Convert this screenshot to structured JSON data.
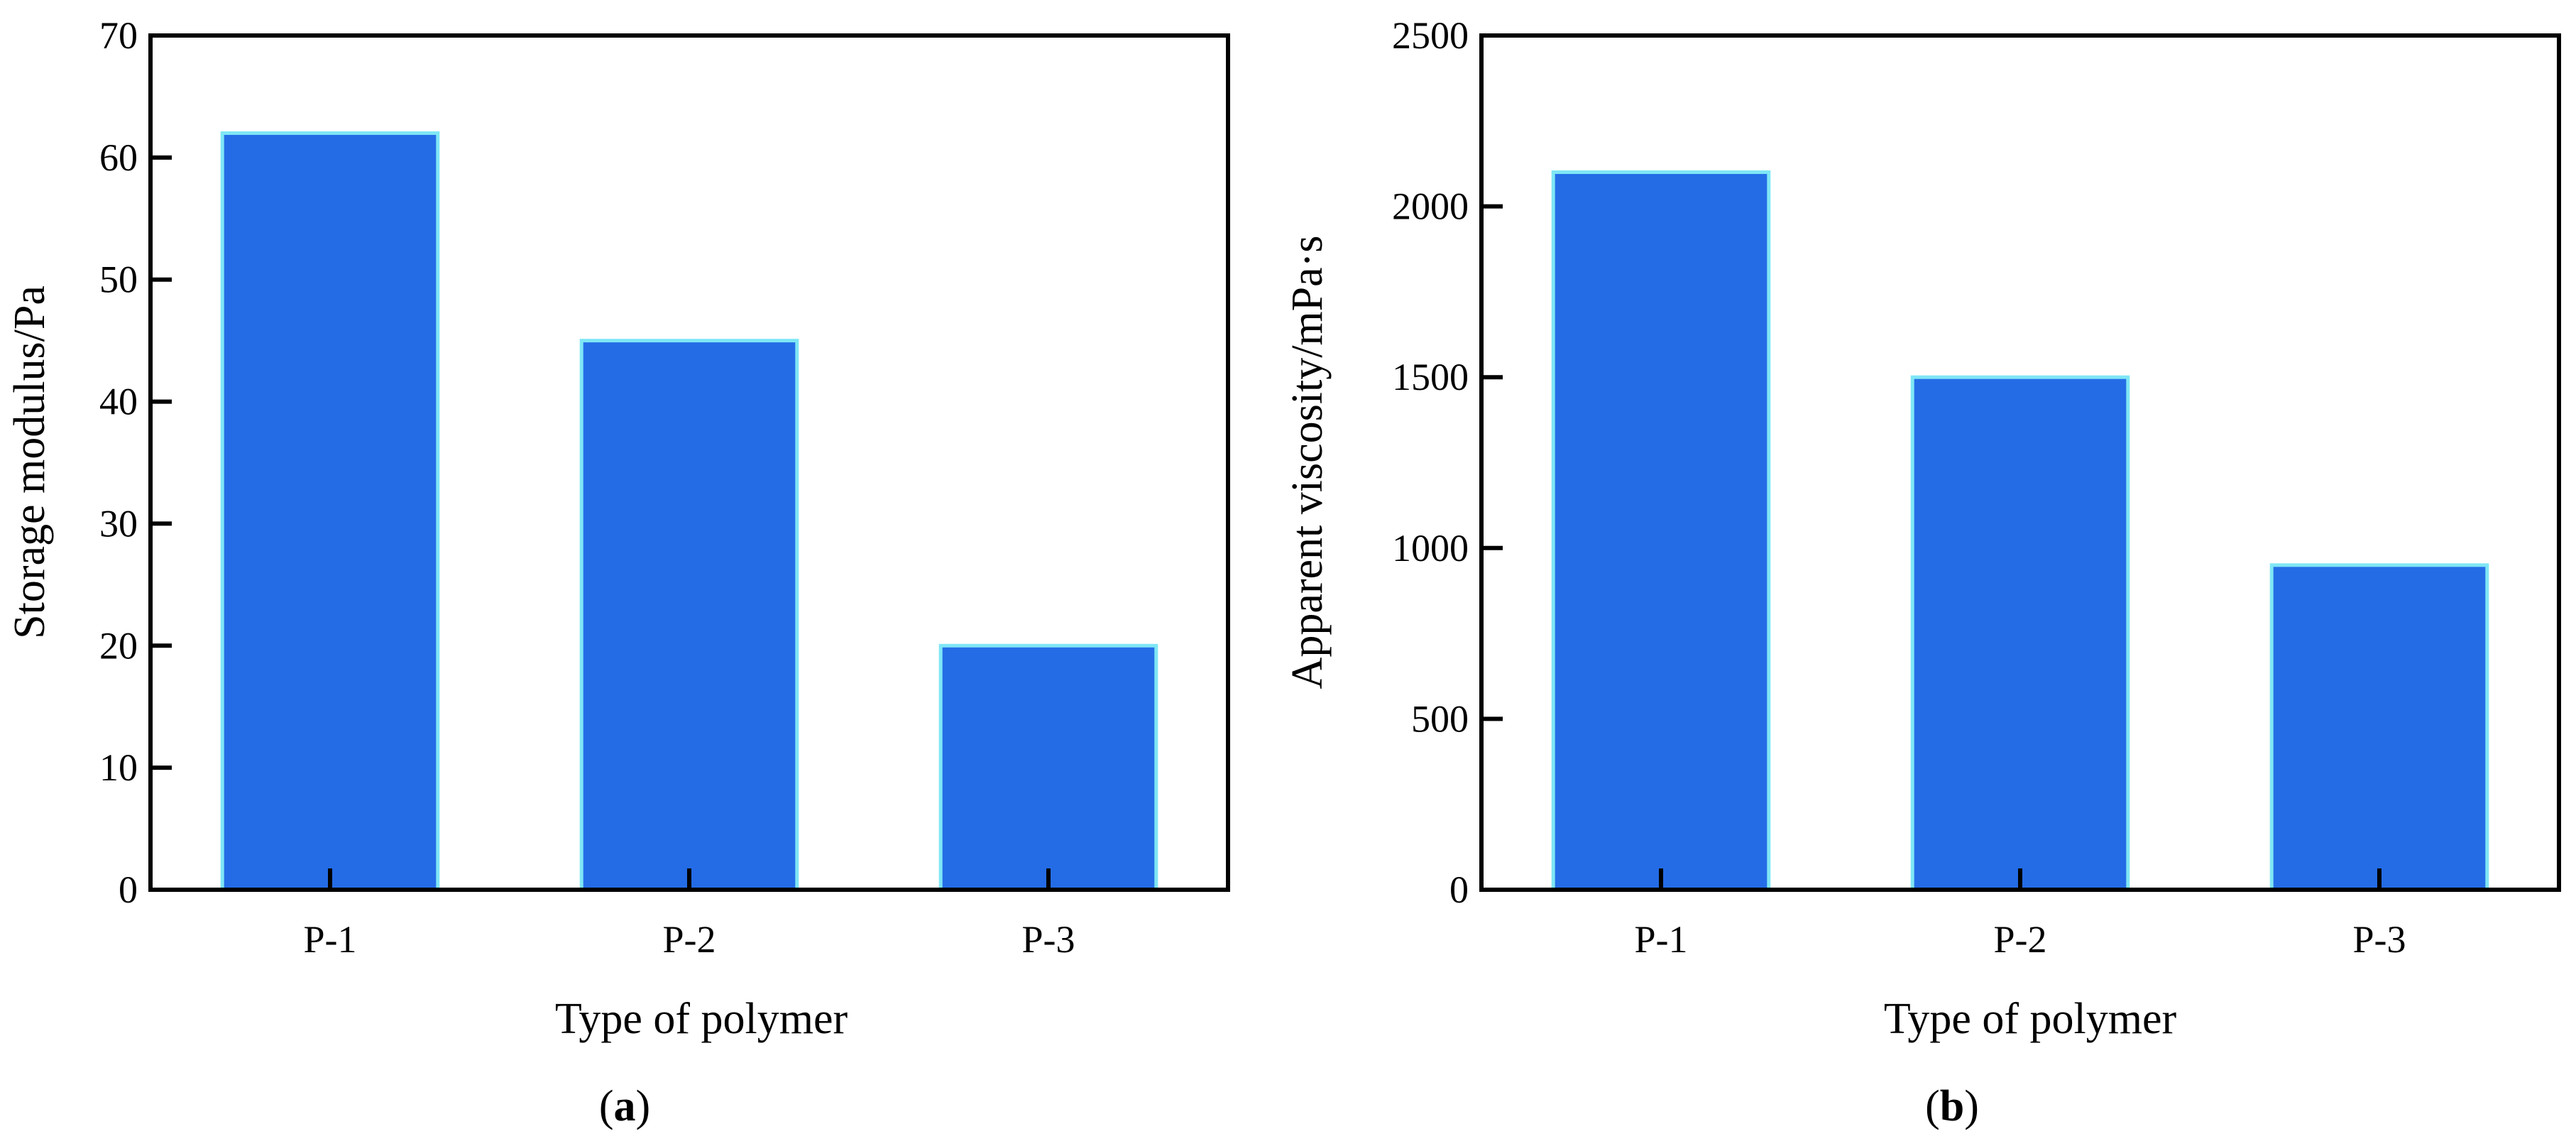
{
  "chart_data": [
    {
      "panel": "(a)",
      "panel_letter": "a",
      "type": "bar",
      "categories": [
        "P-1",
        "P-2",
        "P-3"
      ],
      "values": [
        62,
        45,
        20
      ],
      "xlabel": "Type of polymer",
      "ylabel": "Storage modulus/Pa",
      "ylim": [
        0,
        70
      ],
      "yticks": [
        0,
        10,
        20,
        30,
        40,
        50,
        60,
        70
      ],
      "grid": false,
      "legend": "none"
    },
    {
      "panel": "(b)",
      "panel_letter": "b",
      "type": "bar",
      "categories": [
        "P-1",
        "P-2",
        "P-3"
      ],
      "values": [
        2100,
        1500,
        950
      ],
      "xlabel": "Type of polymer",
      "ylabel": "Apparent viscosity/mPa·s",
      "ylim": [
        0,
        2500
      ],
      "yticks": [
        0,
        500,
        1000,
        1500,
        2000,
        2500
      ],
      "grid": false,
      "legend": "none"
    }
  ],
  "colors": {
    "bar_fill": "#246ce6",
    "bar_edge": "#7fe6f5",
    "axis": "#000000"
  }
}
